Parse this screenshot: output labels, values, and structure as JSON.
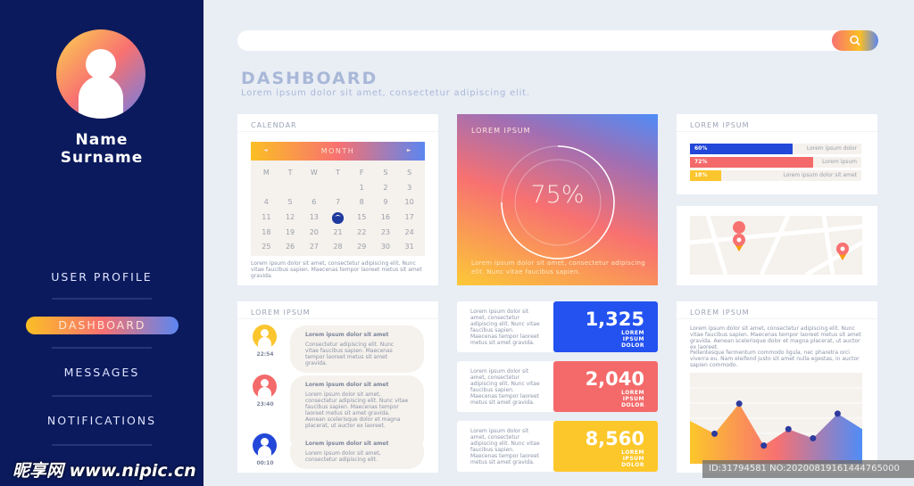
{
  "sidebar": {
    "name": "Name",
    "surname": "Surname",
    "items": [
      {
        "label": "USER PROFILE"
      },
      {
        "label": "DASHBOARD",
        "active": true
      },
      {
        "label": "MESSAGES"
      },
      {
        "label": "NOTIFICATIONS"
      }
    ]
  },
  "search": {
    "placeholder": "",
    "icon": "search-icon"
  },
  "header": {
    "title": "DASHBOARD",
    "subtitle": "Lorem ipsum dolor sit amet, consectetur adipiscing elit."
  },
  "calendar": {
    "title": "CALENDAR",
    "month": "MONTH",
    "prev": "◄",
    "next": "►",
    "weekdays": [
      "M",
      "T",
      "W",
      "T",
      "F",
      "S",
      "S"
    ],
    "days": [
      "",
      "",
      "",
      "",
      "1",
      "2",
      "3",
      "4",
      "5",
      "6",
      "7",
      "8",
      "9",
      "10",
      "11",
      "12",
      "13",
      "14",
      "15",
      "16",
      "17",
      "18",
      "19",
      "20",
      "21",
      "22",
      "23",
      "24",
      "25",
      "26",
      "27",
      "28",
      "29",
      "30",
      "31"
    ],
    "selected": "14",
    "text": "Lorem ipsum dolor sit amet, consectetur adipiscing elit. Nunc vitae faucibus sapien. Maecenas tempor laoreet metus sit amet gravida."
  },
  "gauge": {
    "title": "LOREM IPSUM",
    "value": "75%",
    "percent": 75,
    "text": "Lorem ipsum dolor sit amet, consectetur adipiscing elit. Nunc vitae faucibus sapien."
  },
  "progress": {
    "title": "LOREM IPSUM",
    "bars": [
      {
        "value": "60%",
        "percent": 60,
        "label": "Lorem ipsum dolor",
        "color": "#2347d8"
      },
      {
        "value": "72%",
        "percent": 72,
        "label": "Lorem ipsum",
        "color": "#f46a6a"
      },
      {
        "value": "18%",
        "percent": 18,
        "label": "Lorem ipsum dolor sit amet",
        "color": "#fbc52d"
      }
    ]
  },
  "map": {
    "pins": [
      "map-pin-icon",
      "map-pin-icon"
    ]
  },
  "messages": {
    "title": "LOREM IPSUM",
    "items": [
      {
        "time": "22:54",
        "heading": "Lorem ipsum dolor sit amet",
        "body": "Consectetur adipiscing elit. Nunc vitae faucibus sapien. Maecenas tempor laoreet metus sit amet gravida.",
        "color": "#fbc52d"
      },
      {
        "time": "23:40",
        "heading": "Lorem ipsum dolor sit amet",
        "body": "Lorem ipsum dolor sit amet, consectetur adipiscing elit. Nunc vitae faucibus sapien. Maecenas tempor laoreet metus sit amet gravida. Aenean scelerisque dolor et magna placerat, ut auctor ex laoreet.",
        "color": "#f46a6a"
      },
      {
        "time": "00:10",
        "heading": "Lorem ipsum dolor sit amet",
        "body": "Lorem ipsum dolor sit amet, consectetur adipiscing elit.",
        "color": "#2347d8"
      }
    ]
  },
  "stats": [
    {
      "text": "Lorem ipsum dolor sit amet, consectetur adipiscing elit. Nunc vitae faucibus sapien. Maecenas tempor laoreet metus sit amet gravida.",
      "value": "1,325",
      "label": "LOREM IPSUM DOLOR",
      "color": "#2352f0"
    },
    {
      "text": "Lorem ipsum dolor sit amet, consectetur adipiscing elit. Nunc vitae faucibus sapien. Maecenas tempor laoreet metus sit amet gravida.",
      "value": "2,040",
      "label": "LOREM IPSUM DOLOR",
      "color": "#f46a6a"
    },
    {
      "text": "Lorem ipsum dolor sit amet, consectetur adipiscing elit. Nunc vitae faucibus sapien. Maecenas tempor laoreet metus sit amet gravida.",
      "value": "8,560",
      "label": "LOREM IPSUM DOLOR",
      "color": "#fcc72a"
    }
  ],
  "chartcard": {
    "title": "LOREM IPSUM",
    "p1": "Lorem ipsum dolor sit amet, consectetur adipiscing elit. Nunc vitae faucibus sapien. Maecenas tempor laoreet metus sit amet gravida. Aenean scelerisque dolor et magna placerat, ut auctor ex laoreet.",
    "p2": "Pellentesque fermentum commodo ligula, nec pharetra orci viverra eu. Nam eleifend justo sit amet nulla egestas, in auctor sapien commodo."
  },
  "chart_data": {
    "type": "area",
    "grid": true,
    "ylim": [
      0,
      100
    ],
    "x": [
      0,
      1,
      2,
      3,
      4,
      5,
      6,
      7
    ],
    "values": [
      47,
      33,
      66,
      20,
      38,
      28,
      55,
      38
    ],
    "markers": [
      1,
      2,
      3,
      4,
      5,
      6
    ]
  },
  "watermark": {
    "logo": "昵享网 www.nipic.cn",
    "id": "ID:31794581 NO:20200819161444765000"
  }
}
